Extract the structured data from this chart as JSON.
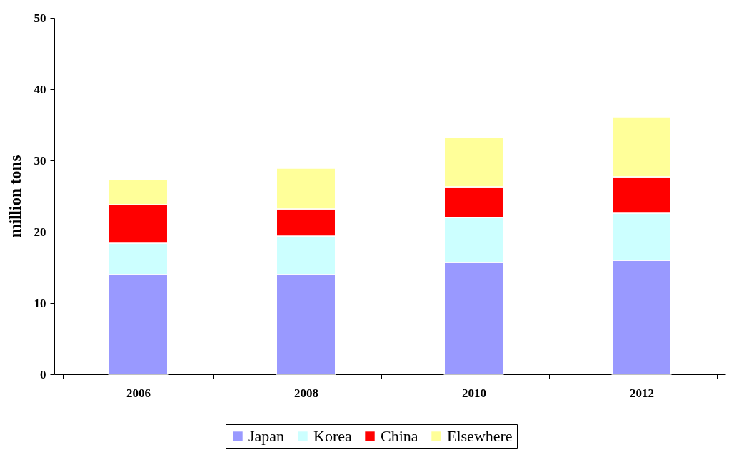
{
  "chart_data": {
    "type": "bar",
    "stacked": true,
    "ylabel": "million tons",
    "categories": [
      "2006",
      "2008",
      "2010",
      "2012"
    ],
    "series": [
      {
        "name": "Japan",
        "color": "#9999ff",
        "values": [
          14.0,
          14.0,
          15.7,
          16.0
        ]
      },
      {
        "name": "Korea",
        "color": "#ccffff",
        "values": [
          4.4,
          5.4,
          6.3,
          6.6
        ]
      },
      {
        "name": "China",
        "color": "#ff0000",
        "values": [
          5.4,
          3.8,
          4.3,
          5.1
        ]
      },
      {
        "name": "Elsewhere",
        "color": "#ffff99",
        "values": [
          3.5,
          5.7,
          6.9,
          8.4
        ]
      }
    ],
    "ylim": [
      0,
      50
    ],
    "yticks": [
      0,
      10,
      20,
      30,
      40,
      50
    ],
    "grid": false,
    "legend": "bottom"
  }
}
